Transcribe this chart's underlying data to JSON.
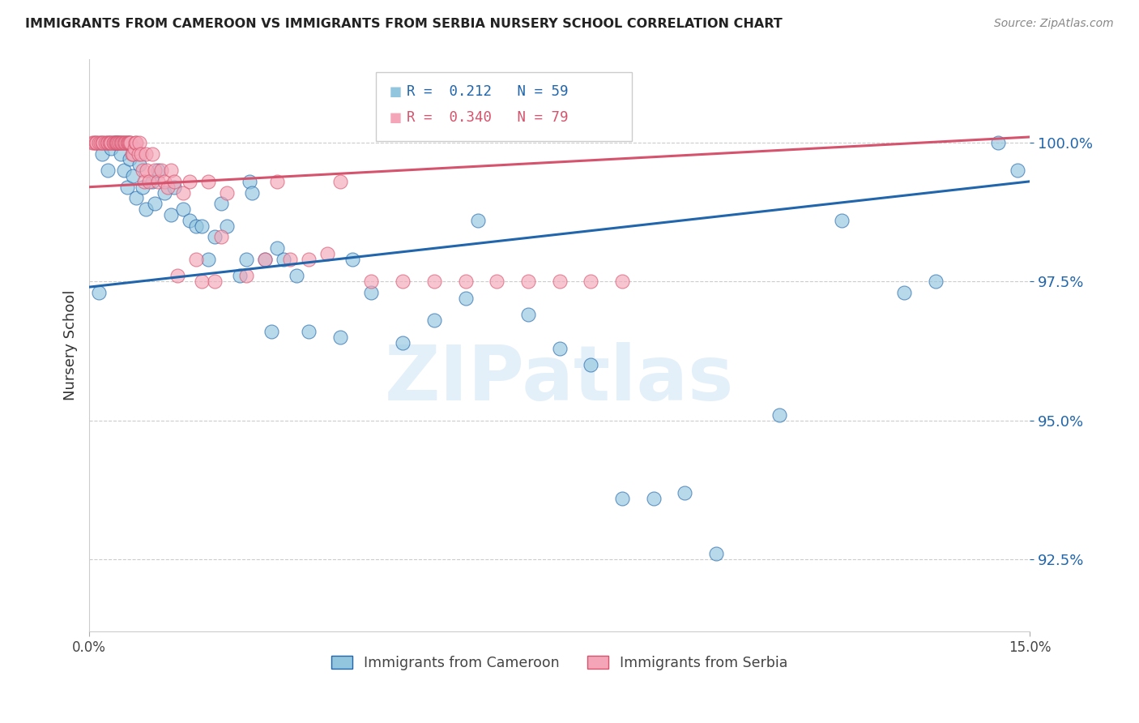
{
  "title": "IMMIGRANTS FROM CAMEROON VS IMMIGRANTS FROM SERBIA NURSERY SCHOOL CORRELATION CHART",
  "source": "Source: ZipAtlas.com",
  "ylabel": "Nursery School",
  "yticks": [
    92.5,
    95.0,
    97.5,
    100.0
  ],
  "ytick_labels": [
    "92.5%",
    "95.0%",
    "97.5%",
    "100.0%"
  ],
  "xmin": 0.0,
  "xmax": 15.0,
  "ymin": 91.2,
  "ymax": 101.5,
  "legend_blue_r": "0.212",
  "legend_blue_n": "59",
  "legend_pink_r": "0.340",
  "legend_pink_n": "79",
  "legend_label_blue": "Immigrants from Cameroon",
  "legend_label_pink": "Immigrants from Serbia",
  "blue_color": "#92c5de",
  "pink_color": "#f4a6b8",
  "trendline_blue": "#2166ac",
  "trendline_pink": "#d6536d",
  "watermark_text": "ZIPatlas",
  "trendline_blue_x0": 0.0,
  "trendline_blue_y0": 97.4,
  "trendline_blue_x1": 15.0,
  "trendline_blue_y1": 99.3,
  "trendline_pink_x0": 0.0,
  "trendline_pink_y0": 99.2,
  "trendline_pink_x1": 15.0,
  "trendline_pink_y1": 100.1,
  "blue_x": [
    0.15,
    0.2,
    0.3,
    0.35,
    0.4,
    0.45,
    0.5,
    0.55,
    0.6,
    0.65,
    0.7,
    0.75,
    0.8,
    0.85,
    0.9,
    1.0,
    1.05,
    1.1,
    1.2,
    1.3,
    1.35,
    1.5,
    1.6,
    1.7,
    1.8,
    1.9,
    2.0,
    2.1,
    2.2,
    2.4,
    2.5,
    2.55,
    2.6,
    2.8,
    2.9,
    3.0,
    3.1,
    3.3,
    3.5,
    4.0,
    4.2,
    4.5,
    5.0,
    5.5,
    6.0,
    6.2,
    7.0,
    7.5,
    8.0,
    8.5,
    9.0,
    9.5,
    10.0,
    11.0,
    12.0,
    13.0,
    13.5,
    14.5,
    14.8
  ],
  "blue_y": [
    97.3,
    99.8,
    99.5,
    99.9,
    100.0,
    100.0,
    99.8,
    99.5,
    99.2,
    99.7,
    99.4,
    99.0,
    99.6,
    99.2,
    98.8,
    99.3,
    98.9,
    99.5,
    99.1,
    98.7,
    99.2,
    98.8,
    98.6,
    98.5,
    98.5,
    97.9,
    98.3,
    98.9,
    98.5,
    97.6,
    97.9,
    99.3,
    99.1,
    97.9,
    96.6,
    98.1,
    97.9,
    97.6,
    96.6,
    96.5,
    97.9,
    97.3,
    96.4,
    96.8,
    97.2,
    98.6,
    96.9,
    96.3,
    96.0,
    93.6,
    93.6,
    93.7,
    92.6,
    95.1,
    98.6,
    97.3,
    97.5,
    100.0,
    99.5
  ],
  "pink_x": [
    0.05,
    0.08,
    0.1,
    0.12,
    0.15,
    0.18,
    0.2,
    0.22,
    0.25,
    0.28,
    0.3,
    0.32,
    0.33,
    0.35,
    0.38,
    0.4,
    0.42,
    0.43,
    0.44,
    0.45,
    0.47,
    0.48,
    0.5,
    0.52,
    0.53,
    0.55,
    0.56,
    0.58,
    0.6,
    0.62,
    0.63,
    0.65,
    0.66,
    0.68,
    0.7,
    0.72,
    0.73,
    0.75,
    0.78,
    0.8,
    0.82,
    0.85,
    0.88,
    0.9,
    0.92,
    0.95,
    1.0,
    1.05,
    1.1,
    1.15,
    1.2,
    1.25,
    1.3,
    1.35,
    1.4,
    1.5,
    1.6,
    1.7,
    1.8,
    1.9,
    2.0,
    2.1,
    2.2,
    2.5,
    2.8,
    3.0,
    3.2,
    3.5,
    3.8,
    4.0,
    4.5,
    5.0,
    5.5,
    6.0,
    6.5,
    7.0,
    7.5,
    8.0,
    8.5
  ],
  "pink_y": [
    100.0,
    100.0,
    100.0,
    100.0,
    100.0,
    100.0,
    100.0,
    100.0,
    100.0,
    100.0,
    100.0,
    100.0,
    100.0,
    100.0,
    100.0,
    100.0,
    100.0,
    100.0,
    100.0,
    100.0,
    100.0,
    100.0,
    100.0,
    100.0,
    100.0,
    100.0,
    100.0,
    100.0,
    100.0,
    100.0,
    100.0,
    100.0,
    100.0,
    99.8,
    99.8,
    99.9,
    100.0,
    100.0,
    99.8,
    100.0,
    99.8,
    99.5,
    99.3,
    99.8,
    99.5,
    99.3,
    99.8,
    99.5,
    99.3,
    99.5,
    99.3,
    99.2,
    99.5,
    99.3,
    97.6,
    99.1,
    99.3,
    97.9,
    97.5,
    99.3,
    97.5,
    98.3,
    99.1,
    97.6,
    97.9,
    99.3,
    97.9,
    97.9,
    98.0,
    99.3,
    97.5,
    97.5,
    97.5,
    97.5,
    97.5,
    97.5,
    97.5,
    97.5,
    97.5
  ]
}
